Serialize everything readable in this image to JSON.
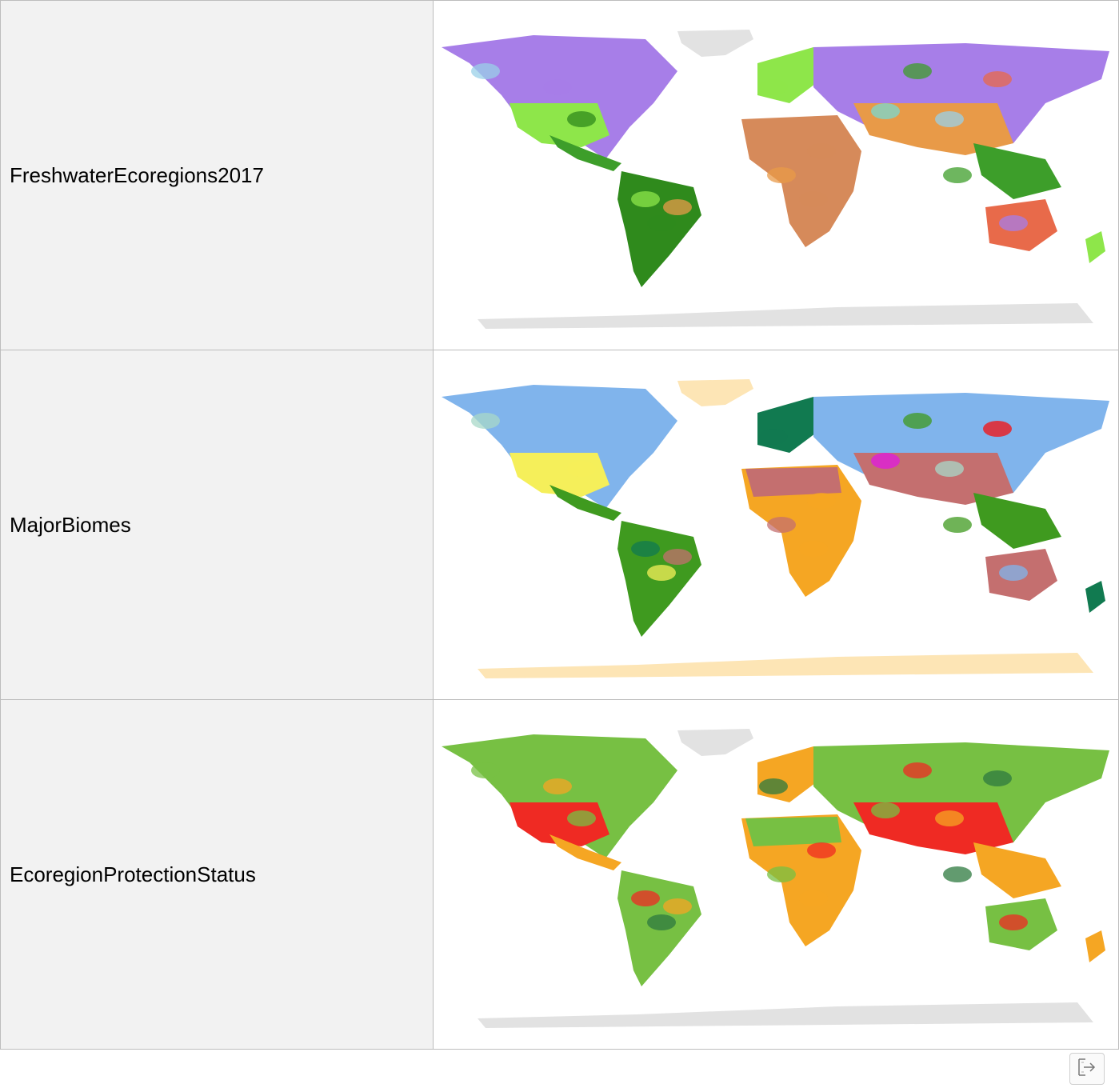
{
  "rows": [
    {
      "label": "FreshwaterEcoregions2017",
      "palette": {
        "ice": "#e2e2e2",
        "arctic": "#9ad0e8",
        "boreal": "#a77ee8",
        "temperate": "#8ee64a",
        "forest": "#2f8a1c",
        "dry": "#e89a48",
        "desert": "#d68a5a",
        "tropical": "#3d9e2a",
        "xeric": "#e86a4a",
        "tundra": "#7ad8d0"
      }
    },
    {
      "label": "MajorBiomes",
      "palette": {
        "ice": "#fde5b5",
        "tundra": "#a8d8c8",
        "boreal": "#80b4ec",
        "temperate": "#117a50",
        "grassland": "#f5ef5a",
        "desert": "#c46f6f",
        "savanna": "#f5a623",
        "tropical": "#3f9a1f",
        "mediterranean": "#f50f0f",
        "mangrove": "#e01ae0"
      }
    },
    {
      "label": "EcoregionProtectionStatus",
      "palette": {
        "ice": "#e2e2e2",
        "nature_could_reach": "#77c043",
        "nature_could_recover": "#f5a623",
        "nature_imperiled": "#ef2a23",
        "half_protected": "#2d7a3f"
      }
    }
  ],
  "export_button": {
    "icon": "export-icon"
  }
}
